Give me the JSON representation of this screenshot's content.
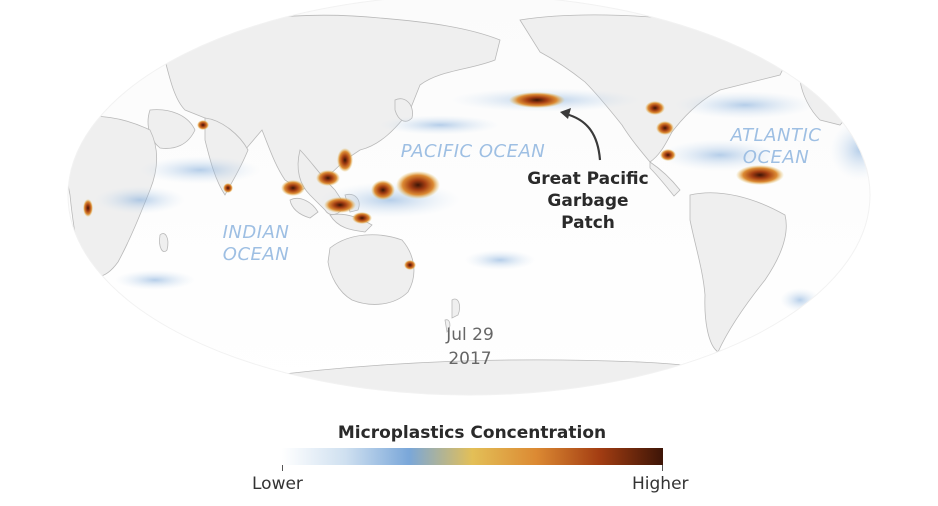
{
  "labels": {
    "pacific": "PACIFIC OCEAN",
    "atlantic_line1": "ATLANTIC",
    "atlantic_line2": "OCEAN",
    "indian_line1": "INDIAN",
    "indian_line2": "OCEAN",
    "patch_line1": "Great Pacific",
    "patch_line2": "Garbage",
    "patch_line3": "Patch"
  },
  "date": {
    "line1": "Jul 29",
    "line2": "2017"
  },
  "legend": {
    "title": "Microplastics Concentration",
    "low_label": "Lower",
    "high_label": "Higher",
    "colors": [
      "#ffffff",
      "#cfe0f0",
      "#7aa7d9",
      "#e3bf57",
      "#dc8a33",
      "#a33d12",
      "#3d1507"
    ]
  },
  "colors": {
    "ocean_label": "#9ebfe3",
    "land": "#efefef",
    "coast": "#b9b9b9",
    "patch_arrow": "#3a3a3a"
  }
}
